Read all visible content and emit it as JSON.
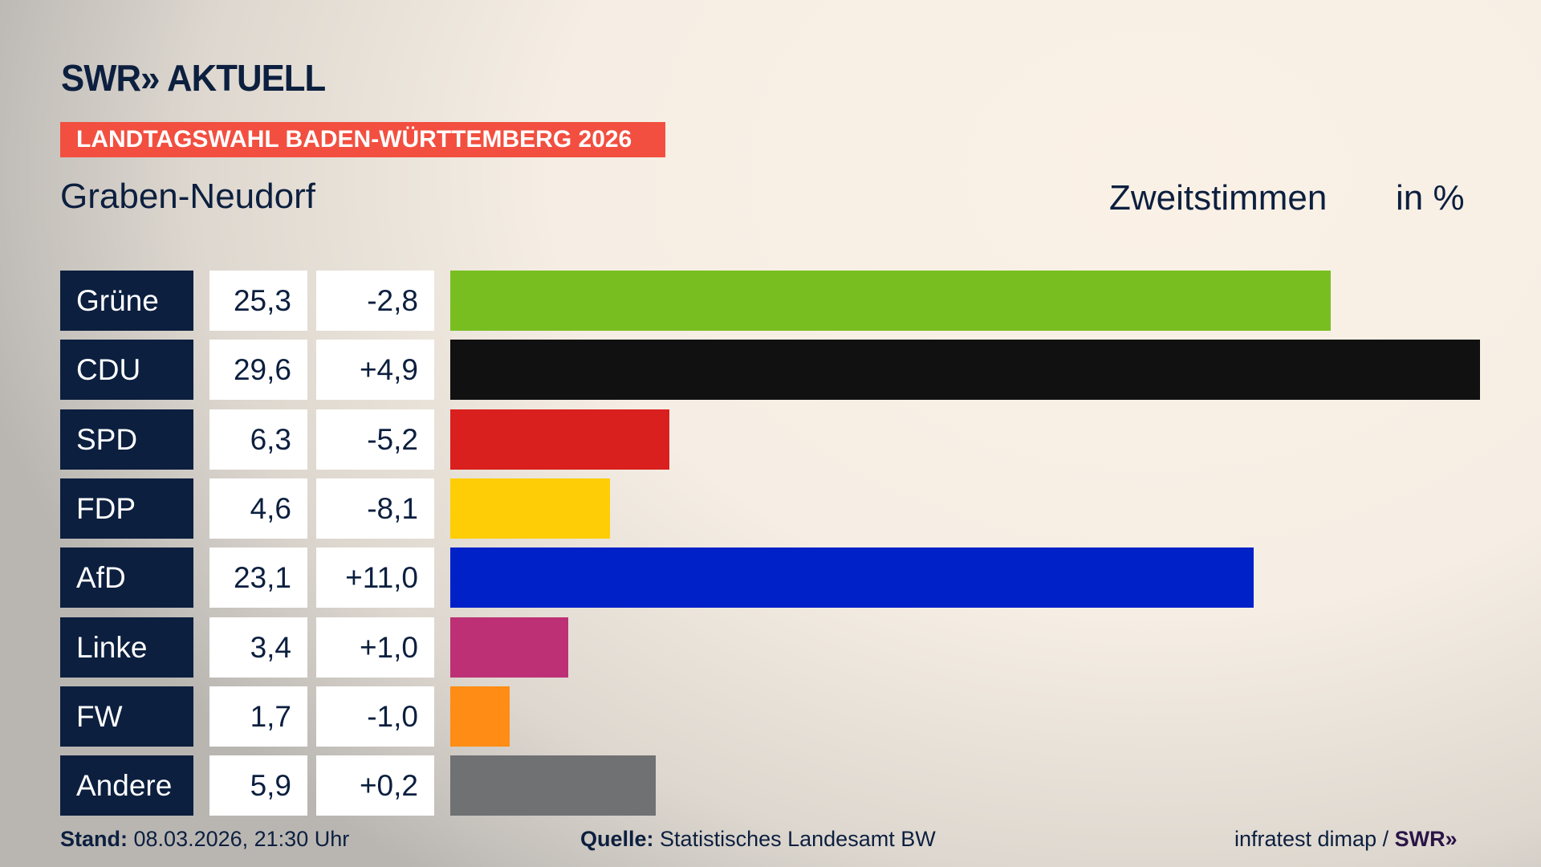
{
  "header": {
    "logo": "SWR» AKTUELL",
    "banner": "LANDTAGSWAHL BADEN-WÜRTTEMBERG 2026",
    "region": "Graben-Neudorf",
    "vote_type": "Zweitstimmen",
    "unit": "in %"
  },
  "colors": {
    "navy": "#0c1f3f",
    "banner": "#f24f40"
  },
  "chart_data": {
    "type": "bar",
    "orientation": "horizontal",
    "categories": [
      "Grüne",
      "CDU",
      "SPD",
      "FDP",
      "AfD",
      "Linke",
      "FW",
      "Andere"
    ],
    "values": [
      25.3,
      29.6,
      6.3,
      4.6,
      23.1,
      3.4,
      1.7,
      5.9
    ],
    "value_labels": [
      "25,3",
      "29,6",
      "6,3",
      "4,6",
      "23,1",
      "3,4",
      "1,7",
      "5,9"
    ],
    "changes": [
      -2.8,
      4.9,
      -5.2,
      -8.1,
      11.0,
      1.0,
      -1.0,
      0.2
    ],
    "change_labels": [
      "-2,8",
      "+4,9",
      "-5,2",
      "-8,1",
      "+11,0",
      "+1,0",
      "-1,0",
      "+0,2"
    ],
    "colors": [
      "#78be20",
      "#111111",
      "#d9201e",
      "#ffcd05",
      "#0021c8",
      "#bd3075",
      "#ff8c14",
      "#707173"
    ],
    "xlim": [
      0,
      29.6
    ],
    "grid": false
  },
  "footer": {
    "stand_label": "Stand:",
    "stand": "08.03.2026, 21:30 Uhr",
    "source_label": "Quelle:",
    "source": "Statistisches Landesamt BW",
    "credit": "infratest dimap /",
    "credit_logo": "SWR»"
  }
}
